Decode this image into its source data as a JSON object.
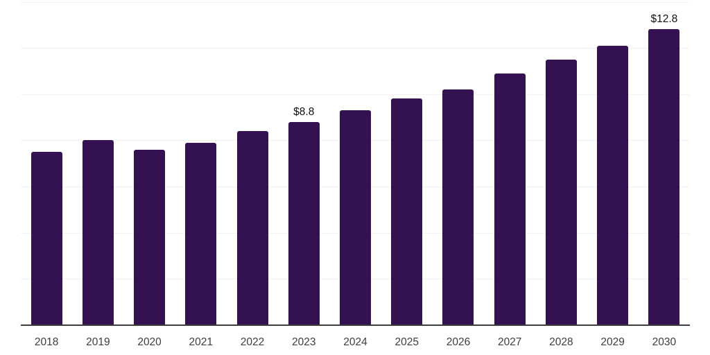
{
  "chart_data": {
    "type": "bar",
    "title": "",
    "xlabel": "",
    "ylabel": "",
    "categories": [
      "2018",
      "2019",
      "2020",
      "2021",
      "2022",
      "2023",
      "2024",
      "2025",
      "2026",
      "2027",
      "2028",
      "2029",
      "2030"
    ],
    "values": [
      7.5,
      8.0,
      7.6,
      7.9,
      8.4,
      8.8,
      9.3,
      9.8,
      10.2,
      10.9,
      11.5,
      12.1,
      12.8
    ],
    "annotations": [
      {
        "category": "2023",
        "text": "$8.8"
      },
      {
        "category": "2030",
        "text": "$12.8"
      }
    ],
    "ylim": [
      0,
      14
    ],
    "gridline_step": 2,
    "grid": "horizontal",
    "y_axis_labels_visible": false,
    "legend": "none",
    "colors": {
      "bar": "#341151",
      "gridline": "#f2f2f2",
      "axis_line": "#3d3d3d",
      "tick_label": "#3d3d3d",
      "annotation": "#111111",
      "background": "#ffffff"
    }
  }
}
